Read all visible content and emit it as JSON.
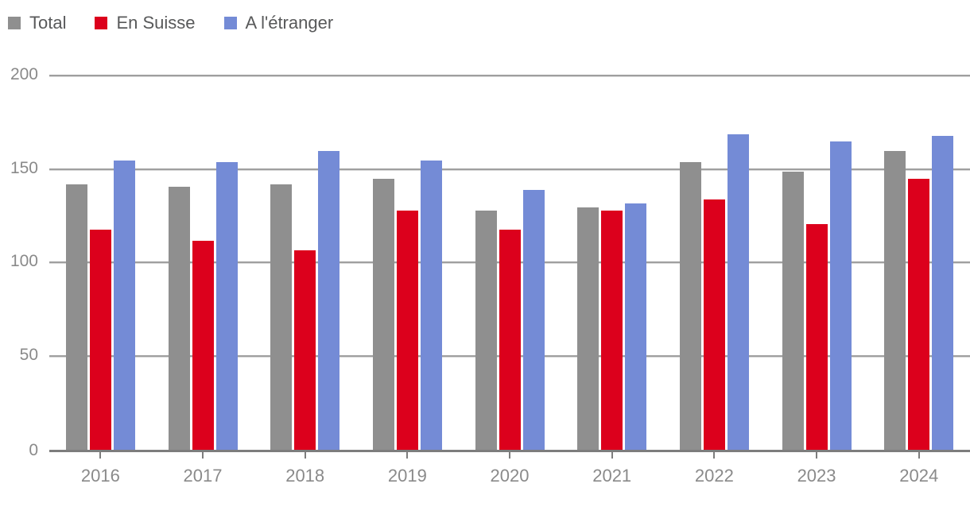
{
  "chart_data": {
    "type": "bar",
    "categories": [
      "2016",
      "2017",
      "2018",
      "2019",
      "2020",
      "2021",
      "2022",
      "2023",
      "2024"
    ],
    "series": [
      {
        "name": "Total",
        "color": "#8f8f8f",
        "values": [
          142,
          141,
          142,
          145,
          128,
          130,
          154,
          149,
          160
        ]
      },
      {
        "name": "En Suisse",
        "color": "#dc001c",
        "values": [
          118,
          112,
          107,
          128,
          118,
          128,
          134,
          121,
          145
        ]
      },
      {
        "name": "A l'étranger",
        "color": "#748bd6",
        "values": [
          155,
          154,
          160,
          155,
          139,
          132,
          169,
          165,
          168
        ]
      }
    ],
    "title": "",
    "xlabel": "",
    "ylabel": "",
    "ylim": [
      0,
      200
    ],
    "yticks": [
      0,
      50,
      100,
      150,
      200
    ],
    "grid": true,
    "legend_position": "top-left"
  },
  "colors": {
    "gridline": "#9f9f9f",
    "gridline_light": "#d9d9d9",
    "axis_line": "#7d7d7d",
    "axis_label_text": "#8a8a8a",
    "legend_text": "#58595a",
    "background": "#ffffff"
  }
}
